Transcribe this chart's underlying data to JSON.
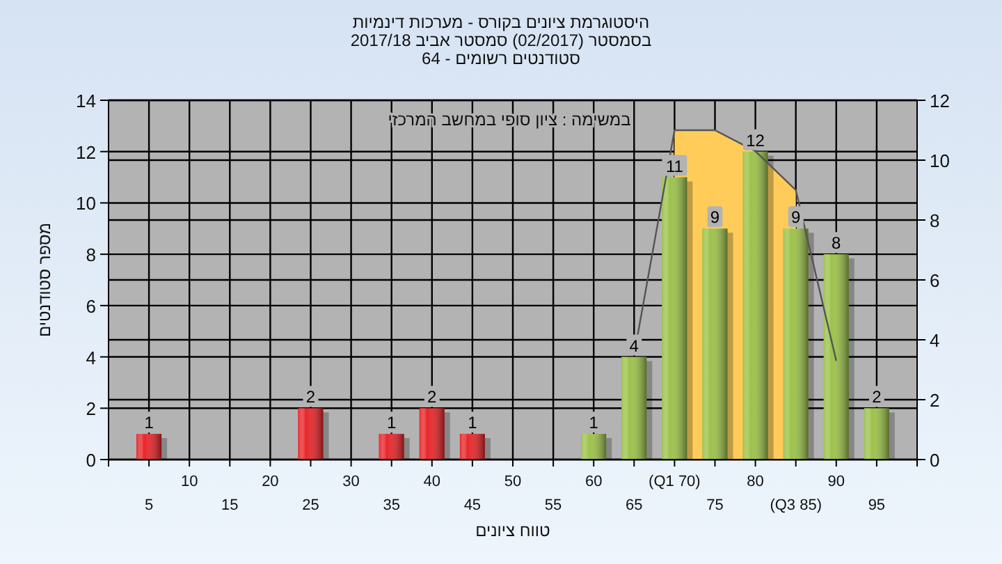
{
  "chart_data": {
    "type": "bar",
    "title": "היסטוגרמת ציונים בקורס - מערכות דינמיות",
    "subtitle": "בסמסטר (02/2017) סמסטר אביב 2017/18\nסטודנטים רשומים - 64",
    "xlabel": "טווח ציונים",
    "ylabel": "מספר סטודנטים",
    "annotations": [
      "במשימה : ציון סופי במחשב המרכזי"
    ],
    "categories": [
      "5",
      "10",
      "15",
      "20",
      "25",
      "30",
      "35",
      "40",
      "45",
      "50",
      "55",
      "60",
      "65",
      "(Q1 70)",
      "75",
      "80",
      "(Q3 85)",
      "90",
      "95"
    ],
    "series": [
      {
        "type": "area",
        "axis": "y2",
        "color": "#ffcc5a",
        "x": [
          "(Q1 70)",
          "75",
          "80",
          "(Q3 85)"
        ],
        "values": [
          11,
          11,
          10.3,
          9
        ]
      },
      {
        "type": "line",
        "axis": "y2",
        "color": "#555555",
        "x": [
          "65",
          "(Q1 70)",
          "75",
          "80",
          "(Q3 85)",
          "90"
        ],
        "values": [
          3.5,
          11,
          11,
          10.3,
          9,
          3.3
        ]
      },
      {
        "values": [
          1,
          0,
          0,
          0,
          2,
          0,
          1,
          2,
          1,
          0,
          0,
          1,
          4,
          11,
          9,
          12,
          9,
          8,
          2
        ],
        "colors": [
          "#e8262a",
          "#e8262a",
          "#e8262a",
          "#e8262a",
          "#e8262a",
          "#e8262a",
          "#e8262a",
          "#e8262a",
          "#e8262a",
          "#e8262a",
          "#9cc24a",
          "#9cc24a",
          "#9cc24a",
          "#9cc24a",
          "#9cc24a",
          "#9cc24a",
          "#9cc24a",
          "#9cc24a",
          "#9cc24a"
        ],
        "value_labels": [
          "1",
          null,
          null,
          null,
          "2",
          null,
          "1",
          "2",
          "1",
          null,
          null,
          "1",
          "4",
          "11",
          "9",
          "12",
          "9",
          "8",
          "2"
        ]
      }
    ],
    "ylim": [
      0,
      14
    ],
    "yticks": [
      0,
      2,
      4,
      6,
      8,
      10,
      12,
      14
    ],
    "y2lim": [
      0,
      12
    ],
    "y2ticks": [
      0,
      2,
      4,
      6,
      8,
      10,
      12
    ],
    "grid": true
  }
}
